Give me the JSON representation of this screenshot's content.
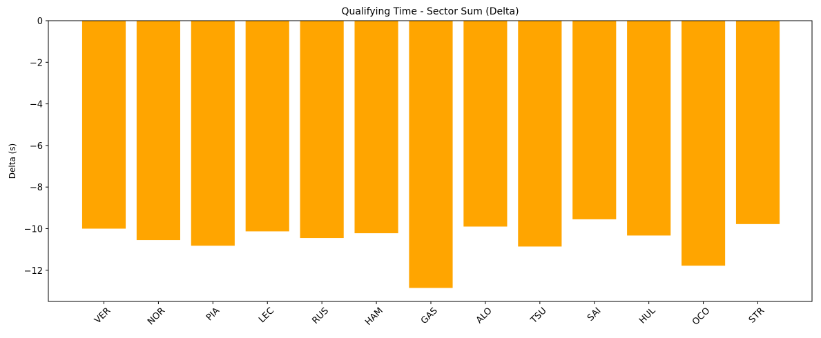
{
  "chart_data": {
    "type": "bar",
    "title": "Qualifying Time - Sector Sum (Delta)",
    "xlabel": "",
    "ylabel": "Delta (s)",
    "categories": [
      "VER",
      "NOR",
      "PIA",
      "LEC",
      "RUS",
      "HAM",
      "GAS",
      "ALO",
      "TSU",
      "SAI",
      "HUL",
      "OCO",
      "STR"
    ],
    "values": [
      -10.0,
      -10.55,
      -10.82,
      -10.13,
      -10.45,
      -10.22,
      -12.85,
      -9.9,
      -10.86,
      -9.55,
      -10.33,
      -11.78,
      -9.78
    ],
    "ylim": [
      -13.5,
      0
    ],
    "yticks": [
      0,
      -2,
      -4,
      -6,
      -8,
      -10,
      -12
    ],
    "ytick_labels": [
      "0",
      "−2",
      "−4",
      "−6",
      "−8",
      "−10",
      "−12"
    ],
    "bar_color": "#FFA500",
    "grid": false,
    "legend": "none"
  }
}
